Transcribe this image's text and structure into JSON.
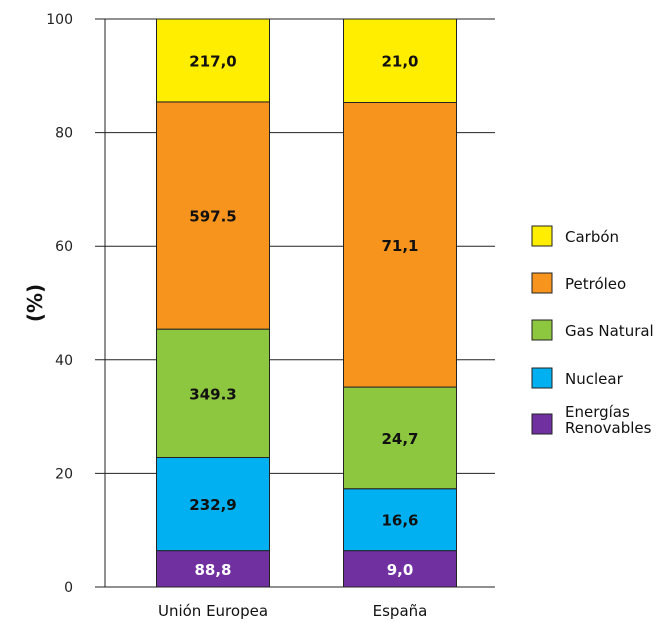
{
  "chart_data": {
    "type": "bar",
    "stacked": true,
    "ylabel": "(%)",
    "ylim": [
      0,
      100
    ],
    "yticks": [
      0,
      20,
      40,
      60,
      80,
      100
    ],
    "grid": true,
    "legend_position": "right",
    "categories": [
      "Unión Europea",
      "España"
    ],
    "series": [
      {
        "name": "Energías Renovables",
        "name_lines": [
          "Energías",
          "Renovables"
        ],
        "color": "#7030a0",
        "label_color": "#ffffff",
        "values": [
          6.4,
          6.4
        ],
        "labels": [
          "88,8",
          "9,0"
        ]
      },
      {
        "name": "Nuclear",
        "name_lines": [
          "Nuclear"
        ],
        "color": "#00b0f0",
        "label_color": "#111111",
        "values": [
          16.4,
          10.9
        ],
        "labels": [
          "232,9",
          "16,6"
        ]
      },
      {
        "name": "Gas Natural",
        "name_lines": [
          "Gas Natural"
        ],
        "color": "#8dc63f",
        "label_color": "#111111",
        "values": [
          22.6,
          17.9
        ],
        "labels": [
          "349.3",
          "24,7"
        ]
      },
      {
        "name": "Petróleo",
        "name_lines": [
          "Petróleo"
        ],
        "color": "#f7941d",
        "label_color": "#111111",
        "values": [
          40.0,
          50.1
        ],
        "labels": [
          "597.5",
          "71,1"
        ]
      },
      {
        "name": "Carbón",
        "name_lines": [
          "Carbón"
        ],
        "color": "#ffee00",
        "label_color": "#111111",
        "values": [
          14.6,
          14.7
        ],
        "labels": [
          "217,0",
          "21,0"
        ]
      }
    ],
    "legend_order": [
      "Carbón",
      "Petróleo",
      "Gas Natural",
      "Nuclear",
      "Energías Renovables"
    ]
  }
}
